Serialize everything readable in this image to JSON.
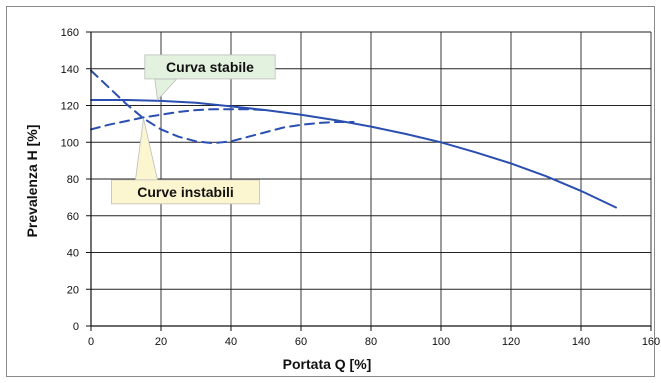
{
  "chart_data": {
    "type": "line",
    "title": "",
    "xlabel": "Portata  Q [%]",
    "ylabel": "Prevalenza H [%]",
    "xlim": [
      0,
      160
    ],
    "ylim": [
      0,
      160
    ],
    "x_ticks": [
      0,
      20,
      40,
      60,
      80,
      100,
      120,
      140,
      160
    ],
    "y_ticks": [
      0,
      20,
      40,
      60,
      80,
      100,
      120,
      140,
      160
    ],
    "grid": true,
    "series": [
      {
        "style": "solid",
        "color": "#2b4fb0",
        "x": [
          0,
          10,
          20,
          30,
          40,
          50,
          60,
          70,
          80,
          90,
          100,
          110,
          120,
          130,
          140,
          150
        ],
        "y": [
          123,
          123,
          122.5,
          121.5,
          119.5,
          117.5,
          115,
          112,
          108.5,
          104.5,
          100,
          94.5,
          88.5,
          81.5,
          73.5,
          64.5
        ]
      },
      {
        "style": "dashed",
        "color": "#2b4fb0",
        "x": [
          0,
          5,
          10,
          15,
          20,
          25,
          30,
          35,
          40,
          45,
          50,
          55,
          60,
          65,
          70,
          75
        ],
        "y": [
          139,
          130,
          121,
          113,
          107,
          103,
          100.5,
          99.5,
          100.5,
          103,
          105.5,
          108,
          109.5,
          110.5,
          111,
          111
        ]
      },
      {
        "style": "dashed",
        "color": "#2b4fb0",
        "x": [
          0,
          5,
          10,
          15,
          20,
          25,
          30,
          35,
          40,
          45,
          50
        ],
        "y": [
          107,
          109.5,
          111.5,
          113.5,
          115,
          116.5,
          117.5,
          118,
          118,
          118,
          117.5
        ]
      }
    ],
    "annotations": [
      {
        "text": "Curva stabile",
        "x": 34,
        "y": 141,
        "point_x": 19,
        "point_y": 123,
        "fill": "#e3f1df"
      },
      {
        "text": "Curve instabili",
        "x": 27,
        "y": 73,
        "point_x": 15,
        "point_y": 113,
        "fill": "#fbf6cf"
      }
    ]
  }
}
